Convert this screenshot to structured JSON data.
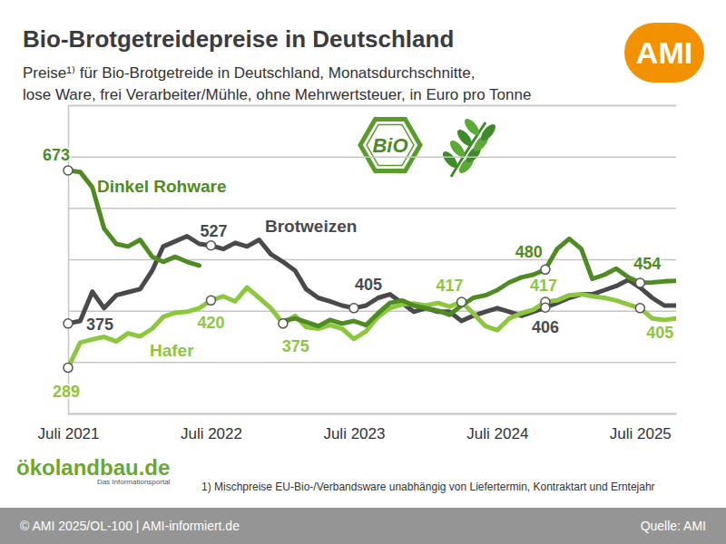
{
  "chart_data": {
    "type": "line",
    "title": "Bio-Brotgetreidepreise in Deutschland",
    "subtitle": [
      "Preise¹⁾ für Bio-Brotgetreide in Deutschland, Monatsdurchschnitte,",
      "lose Ware, frei Verarbeiter/Mühle, ohne Mehrwertsteuer, in Euro pro Tonne"
    ],
    "x": [
      "2021-07",
      "2021-08",
      "2021-09",
      "2021-10",
      "2021-11",
      "2021-12",
      "2022-01",
      "2022-02",
      "2022-03",
      "2022-04",
      "2022-05",
      "2022-06",
      "2022-07",
      "2022-08",
      "2022-09",
      "2022-10",
      "2022-11",
      "2022-12",
      "2023-01",
      "2023-02",
      "2023-03",
      "2023-04",
      "2023-05",
      "2023-06",
      "2023-07",
      "2023-08",
      "2023-09",
      "2023-10",
      "2023-11",
      "2023-12",
      "2024-01",
      "2024-02",
      "2024-03",
      "2024-04",
      "2024-05",
      "2024-06",
      "2024-07",
      "2024-08",
      "2024-09",
      "2024-10",
      "2024-11",
      "2024-12",
      "2025-01",
      "2025-02",
      "2025-03",
      "2025-04",
      "2025-05",
      "2025-06",
      "2025-07",
      "2025-08",
      "2025-09",
      "2025-10"
    ],
    "xlim": [
      "2021-07",
      "2025-10"
    ],
    "xticks": [
      {
        "value": "2021-07",
        "label": "Juli 2021"
      },
      {
        "value": "2022-07",
        "label": "Juli 2022"
      },
      {
        "value": "2023-07",
        "label": "Juli 2023"
      },
      {
        "value": "2024-07",
        "label": "Juli 2024"
      },
      {
        "value": "2025-07",
        "label": "Juli 2025"
      }
    ],
    "ylim": [
      200,
      800
    ],
    "yticks": [
      200,
      300,
      400,
      500,
      600,
      700,
      800
    ],
    "grid": true,
    "tick_labels": "x",
    "series": [
      {
        "name": "Dinkel Rohware",
        "color": "#4e8b22",
        "values": [
          673,
          670,
          640,
          560,
          530,
          525,
          538,
          505,
          495,
          505,
          495,
          488,
          null,
          null,
          null,
          null,
          null,
          null,
          380,
          385,
          378,
          370,
          382,
          375,
          380,
          372,
          395,
          415,
          420,
          410,
          405,
          400,
          392,
          410,
          425,
          430,
          440,
          455,
          465,
          470,
          480,
          520,
          540,
          520,
          462,
          470,
          482,
          465,
          454,
          455,
          457,
          458
        ]
      },
      {
        "name": "Brotweizen",
        "color": "#4a4a4c",
        "values": [
          375,
          380,
          437,
          405,
          430,
          436,
          442,
          478,
          525,
          535,
          545,
          530,
          527,
          520,
          532,
          525,
          538,
          510,
          495,
          478,
          442,
          425,
          418,
          410,
          405,
          410,
          425,
          432,
          415,
          398,
          405,
          398,
          398,
          380,
          390,
          398,
          405,
          398,
          390,
          398,
          406,
          415,
          425,
          432,
          432,
          440,
          448,
          460,
          445,
          425,
          410,
          410
        ]
      },
      {
        "name": "Hafer",
        "color": "#8dc63f",
        "values": [
          289,
          338,
          344,
          349,
          340,
          356,
          350,
          365,
          388,
          396,
          398,
          405,
          420,
          428,
          418,
          445,
          425,
          405,
          375,
          390,
          368,
          365,
          372,
          365,
          345,
          360,
          388,
          405,
          412,
          414,
          410,
          415,
          408,
          417,
          395,
          370,
          362,
          385,
          395,
          402,
          417,
          420,
          430,
          432,
          428,
          425,
          420,
          412,
          405,
          385,
          382,
          385
        ]
      }
    ],
    "annotations": [
      {
        "series": "Dinkel Rohware",
        "x": "2021-07",
        "text": "673"
      },
      {
        "series": "Brotweizen",
        "x": "2021-07",
        "text": "375"
      },
      {
        "series": "Hafer",
        "x": "2021-07",
        "text": "289"
      },
      {
        "series": "Brotweizen",
        "x": "2022-07",
        "text": "527"
      },
      {
        "series": "Hafer",
        "x": "2022-07",
        "text": "420"
      },
      {
        "series": "Hafer",
        "x": "2023-01",
        "text": "375"
      },
      {
        "series": "Brotweizen",
        "x": "2023-07",
        "text": "405"
      },
      {
        "series": "Hafer",
        "x": "2024-04",
        "text": "417"
      },
      {
        "series": "Dinkel Rohware",
        "x": "2024-11",
        "text": "480"
      },
      {
        "series": "Hafer",
        "x": "2024-11",
        "text": "417"
      },
      {
        "series": "Brotweizen",
        "x": "2024-11",
        "text": "406"
      },
      {
        "series": "Dinkel Rohware",
        "x": "2025-07",
        "text": "454"
      },
      {
        "series": "Hafer",
        "x": "2025-07",
        "text": "405"
      }
    ],
    "footnote": "1) Mischpreise EU-Bio-/Verbandsware unabhängig von Liefertermin, Kontraktart und Erntejahr",
    "copyright": "© AMI 2025/OL-100 | AMI-informiert.de",
    "source": "Quelle: AMI",
    "logo": "AMI",
    "badge": "BiO",
    "brand": {
      "name": "ökolandbau.de",
      "tagline": "Das Informationsportal"
    }
  }
}
